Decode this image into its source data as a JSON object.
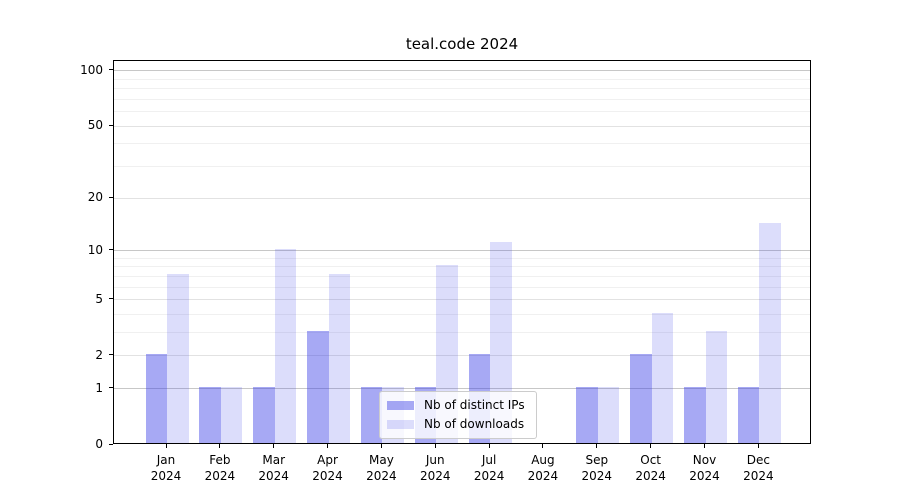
{
  "chart_data": {
    "type": "bar",
    "title": "teal.code 2024",
    "categories": [
      "Jan 2024",
      "Feb 2024",
      "Mar 2024",
      "Apr 2024",
      "May 2024",
      "Jun 2024",
      "Jul 2024",
      "Aug 2024",
      "Sep 2024",
      "Oct 2024",
      "Nov 2024",
      "Dec 2024"
    ],
    "series": [
      {
        "name": "Nb of distinct IPs",
        "color": "rgba(60,64,231,0.45)",
        "values": [
          2,
          1,
          1,
          3,
          1,
          1,
          2,
          0,
          1,
          2,
          1,
          1
        ]
      },
      {
        "name": "Nb of downloads",
        "color": "rgba(60,64,231,0.18)",
        "values": [
          7,
          1,
          10,
          7,
          1,
          8,
          11,
          0,
          1,
          4,
          3,
          14
        ]
      }
    ],
    "xlabel": "",
    "ylabel": "",
    "yscale": "log1p",
    "ylim": [
      0,
      113
    ],
    "yticks": [
      0,
      1,
      2,
      5,
      10,
      20,
      50,
      100
    ],
    "yticks_decade": [
      1,
      10,
      100
    ],
    "yticks_minor": [
      3,
      4,
      6,
      7,
      8,
      9,
      30,
      40,
      60,
      70,
      80,
      90
    ],
    "grid": true,
    "legend_position": "lower center",
    "accent_color": "#3c40e7",
    "background_color": "#ffffff"
  }
}
